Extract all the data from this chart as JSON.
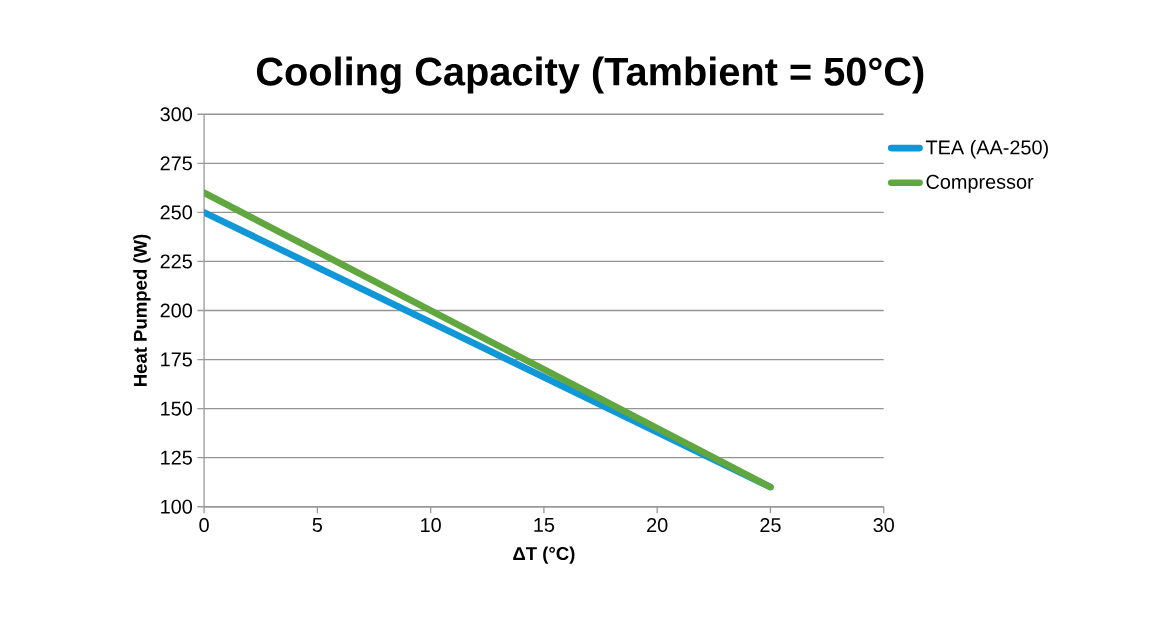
{
  "chart_data": {
    "type": "line",
    "title": "Cooling Capacity (Tambient = 50°C)",
    "xlabel": "ΔT (°C)",
    "ylabel": "Heat Pumped (W)",
    "x": [
      0,
      25
    ],
    "series": [
      {
        "name": "TEA (AA-250)",
        "color": "#0f97d8",
        "values": [
          250,
          110
        ]
      },
      {
        "name": "Compressor",
        "color": "#5fa73e",
        "values": [
          260,
          110
        ]
      }
    ],
    "xlim": [
      0,
      30
    ],
    "xticks": [
      0,
      5,
      10,
      15,
      20,
      25,
      30
    ],
    "ylim": [
      100,
      300
    ],
    "yticks": [
      100,
      125,
      150,
      175,
      200,
      225,
      250,
      275,
      300
    ],
    "grid": "y",
    "legend": "right",
    "marker": "none",
    "line_style": "solid"
  }
}
